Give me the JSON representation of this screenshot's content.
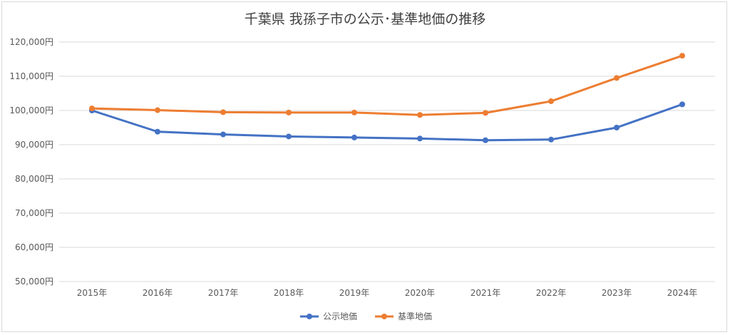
{
  "chart_data": {
    "type": "line",
    "title": "千葉県 我孫子市の公示･基準地価の推移",
    "xlabel": "",
    "ylabel": "",
    "categories": [
      "2015年",
      "2016年",
      "2017年",
      "2018年",
      "2019年",
      "2020年",
      "2021年",
      "2022年",
      "2023年",
      "2024年"
    ],
    "ylim": [
      50000,
      120000
    ],
    "yticks": [
      50000,
      60000,
      70000,
      80000,
      90000,
      100000,
      110000,
      120000
    ],
    "ytick_labels": [
      "50,000円",
      "60,000円",
      "70,000円",
      "80,000円",
      "90,000円",
      "100,000円",
      "110,000円",
      "120,000円"
    ],
    "grid": true,
    "legend_position": "bottom",
    "series": [
      {
        "name": "公示地価",
        "color": "#4472c4",
        "values": [
          100000,
          93800,
          93000,
          92400,
          92100,
          91800,
          91300,
          91500,
          95000,
          101800
        ]
      },
      {
        "name": "基準地価",
        "color": "#ed7d31",
        "values": [
          100600,
          100100,
          99500,
          99400,
          99400,
          98700,
          99300,
          102700,
          109500,
          116000
        ]
      }
    ]
  }
}
